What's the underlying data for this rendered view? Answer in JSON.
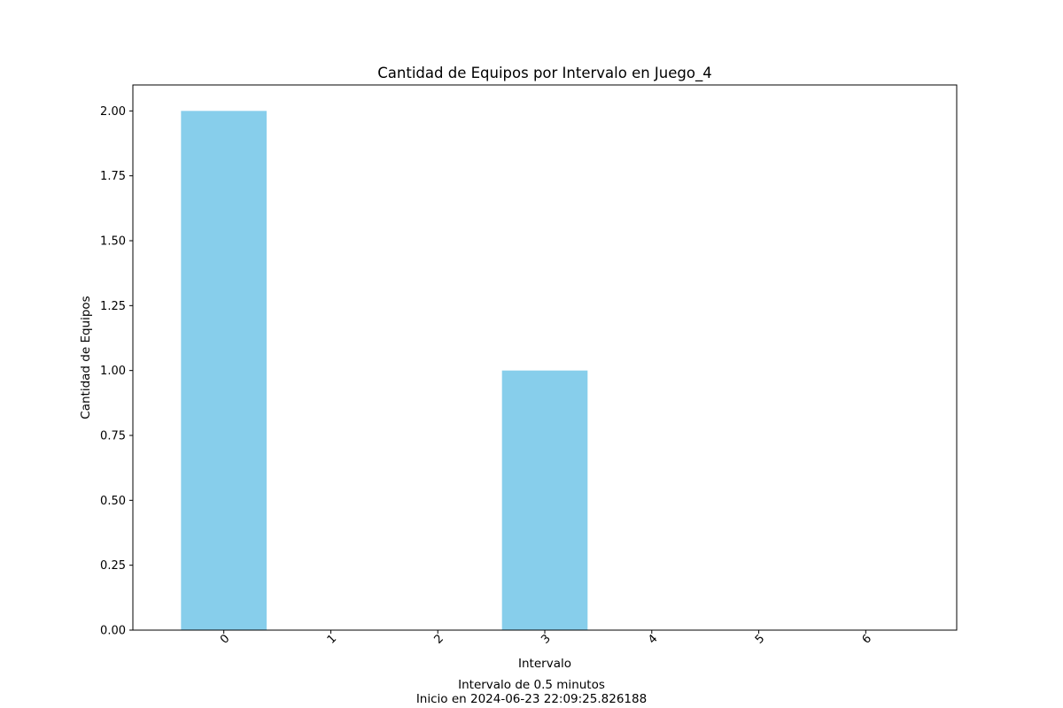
{
  "chart_data": {
    "type": "bar",
    "title": "Cantidad de Equipos por Intervalo en Juego_4",
    "xlabel": "Intervalo",
    "ylabel": "Cantidad de Equipos",
    "categories": [
      "0",
      "1",
      "2",
      "3",
      "4",
      "5",
      "6"
    ],
    "values": [
      2,
      0,
      0,
      1,
      0,
      0,
      0
    ],
    "ylim": [
      0,
      2.1
    ],
    "yticks": [
      "0.00",
      "0.25",
      "0.50",
      "0.75",
      "1.00",
      "1.25",
      "1.50",
      "1.75",
      "2.00"
    ],
    "xtick_rotation": 45,
    "bar_color": "#87ceeb",
    "grid": false,
    "footer": [
      "Intervalo de 0.5 minutos",
      "Inicio en 2024-06-23 22:09:25.826188"
    ]
  }
}
